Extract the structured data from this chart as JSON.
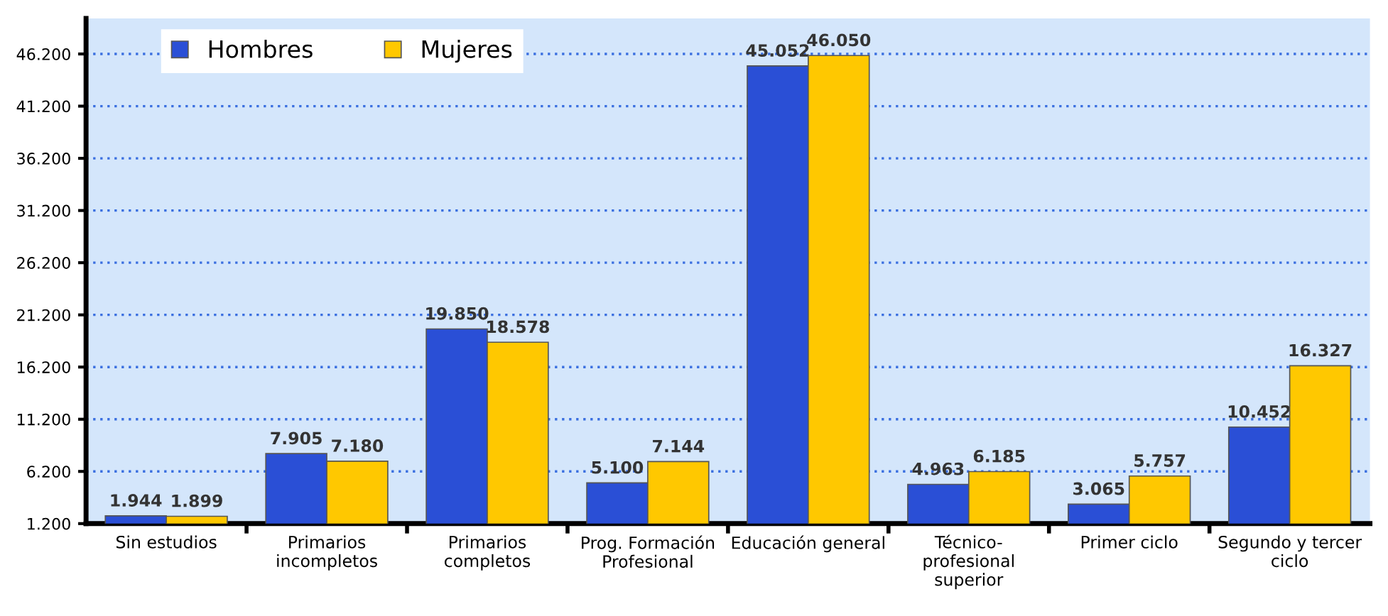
{
  "chart_data": {
    "type": "bar",
    "categories": [
      "Sin estudios",
      "Primarios\nincompletos",
      "Primarios\ncompletos",
      "Prog. Formación\nProfesional",
      "Educación general",
      "Técnico-\nprofesional\nsuperior",
      "Primer ciclo",
      "Segundo y tercer\nciclo"
    ],
    "series": [
      {
        "name": "Hombres",
        "color": "#2a4fd6",
        "values": [
          1944,
          7905,
          19850,
          5100,
          45052,
          4963,
          3065,
          10452
        ],
        "value_labels": [
          "1.944",
          "7.905",
          "19.850",
          "5.100",
          "45.052",
          "4.963",
          "3.065",
          "10.452"
        ]
      },
      {
        "name": "Mujeres",
        "color": "#ffc800",
        "values": [
          1899,
          7180,
          18578,
          7144,
          46050,
          6185,
          5757,
          16327
        ],
        "value_labels": [
          "1.899",
          "7.180",
          "18.578",
          "7.144",
          "46.050",
          "6.185",
          "5.757",
          "16.327"
        ]
      }
    ],
    "ylim": [
      1200,
      49600
    ],
    "yticks": [
      {
        "value": 1200,
        "label": "1.200"
      },
      {
        "value": 6200,
        "label": "6.200"
      },
      {
        "value": 11200,
        "label": "11.200"
      },
      {
        "value": 16200,
        "label": "16.200"
      },
      {
        "value": 21200,
        "label": "21.200"
      },
      {
        "value": 26200,
        "label": "26.200"
      },
      {
        "value": 31200,
        "label": "31.200"
      },
      {
        "value": 36200,
        "label": "36.200"
      },
      {
        "value": 41200,
        "label": "41.200"
      },
      {
        "value": 46200,
        "label": "46.200"
      }
    ],
    "grid": "y",
    "legend": "top left"
  }
}
